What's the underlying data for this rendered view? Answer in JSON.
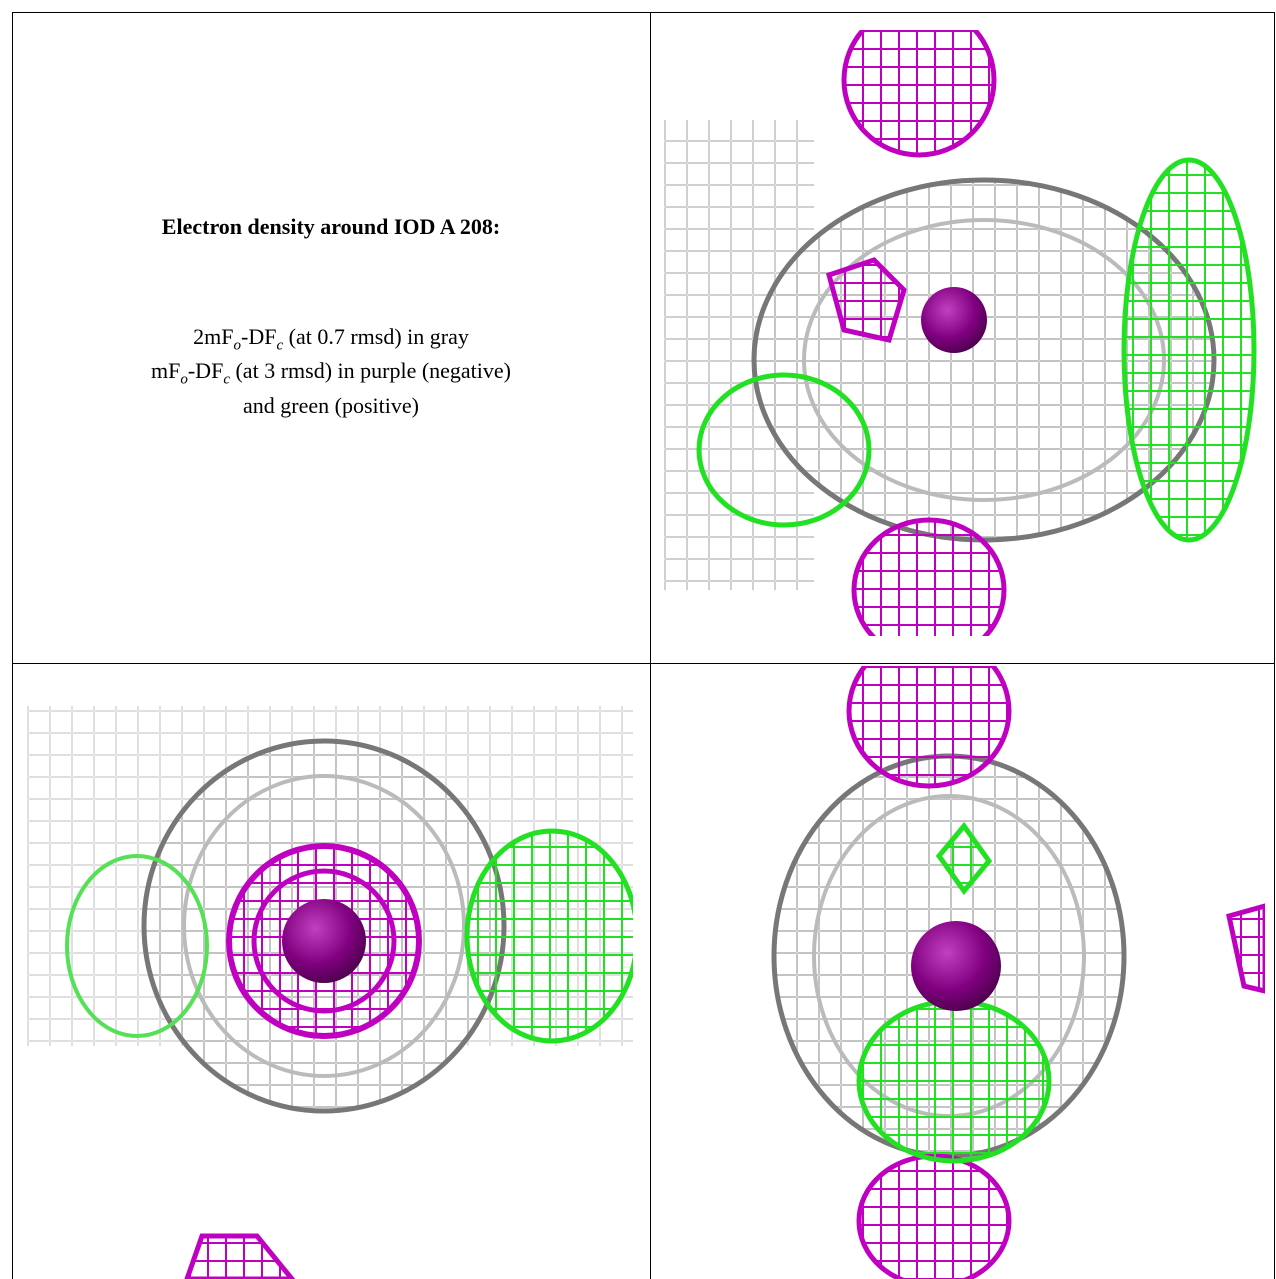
{
  "caption": {
    "title": "Electron density around IOD A 208:",
    "lines": [
      [
        "2mF",
        "o",
        "-DF",
        "c",
        " (at 0.7 rmsd) in gray"
      ],
      [
        "mF",
        "o",
        "-DF",
        "c",
        " (at 3 rmsd) in purple (negative)"
      ],
      [
        "and green (positive)"
      ]
    ]
  }
}
